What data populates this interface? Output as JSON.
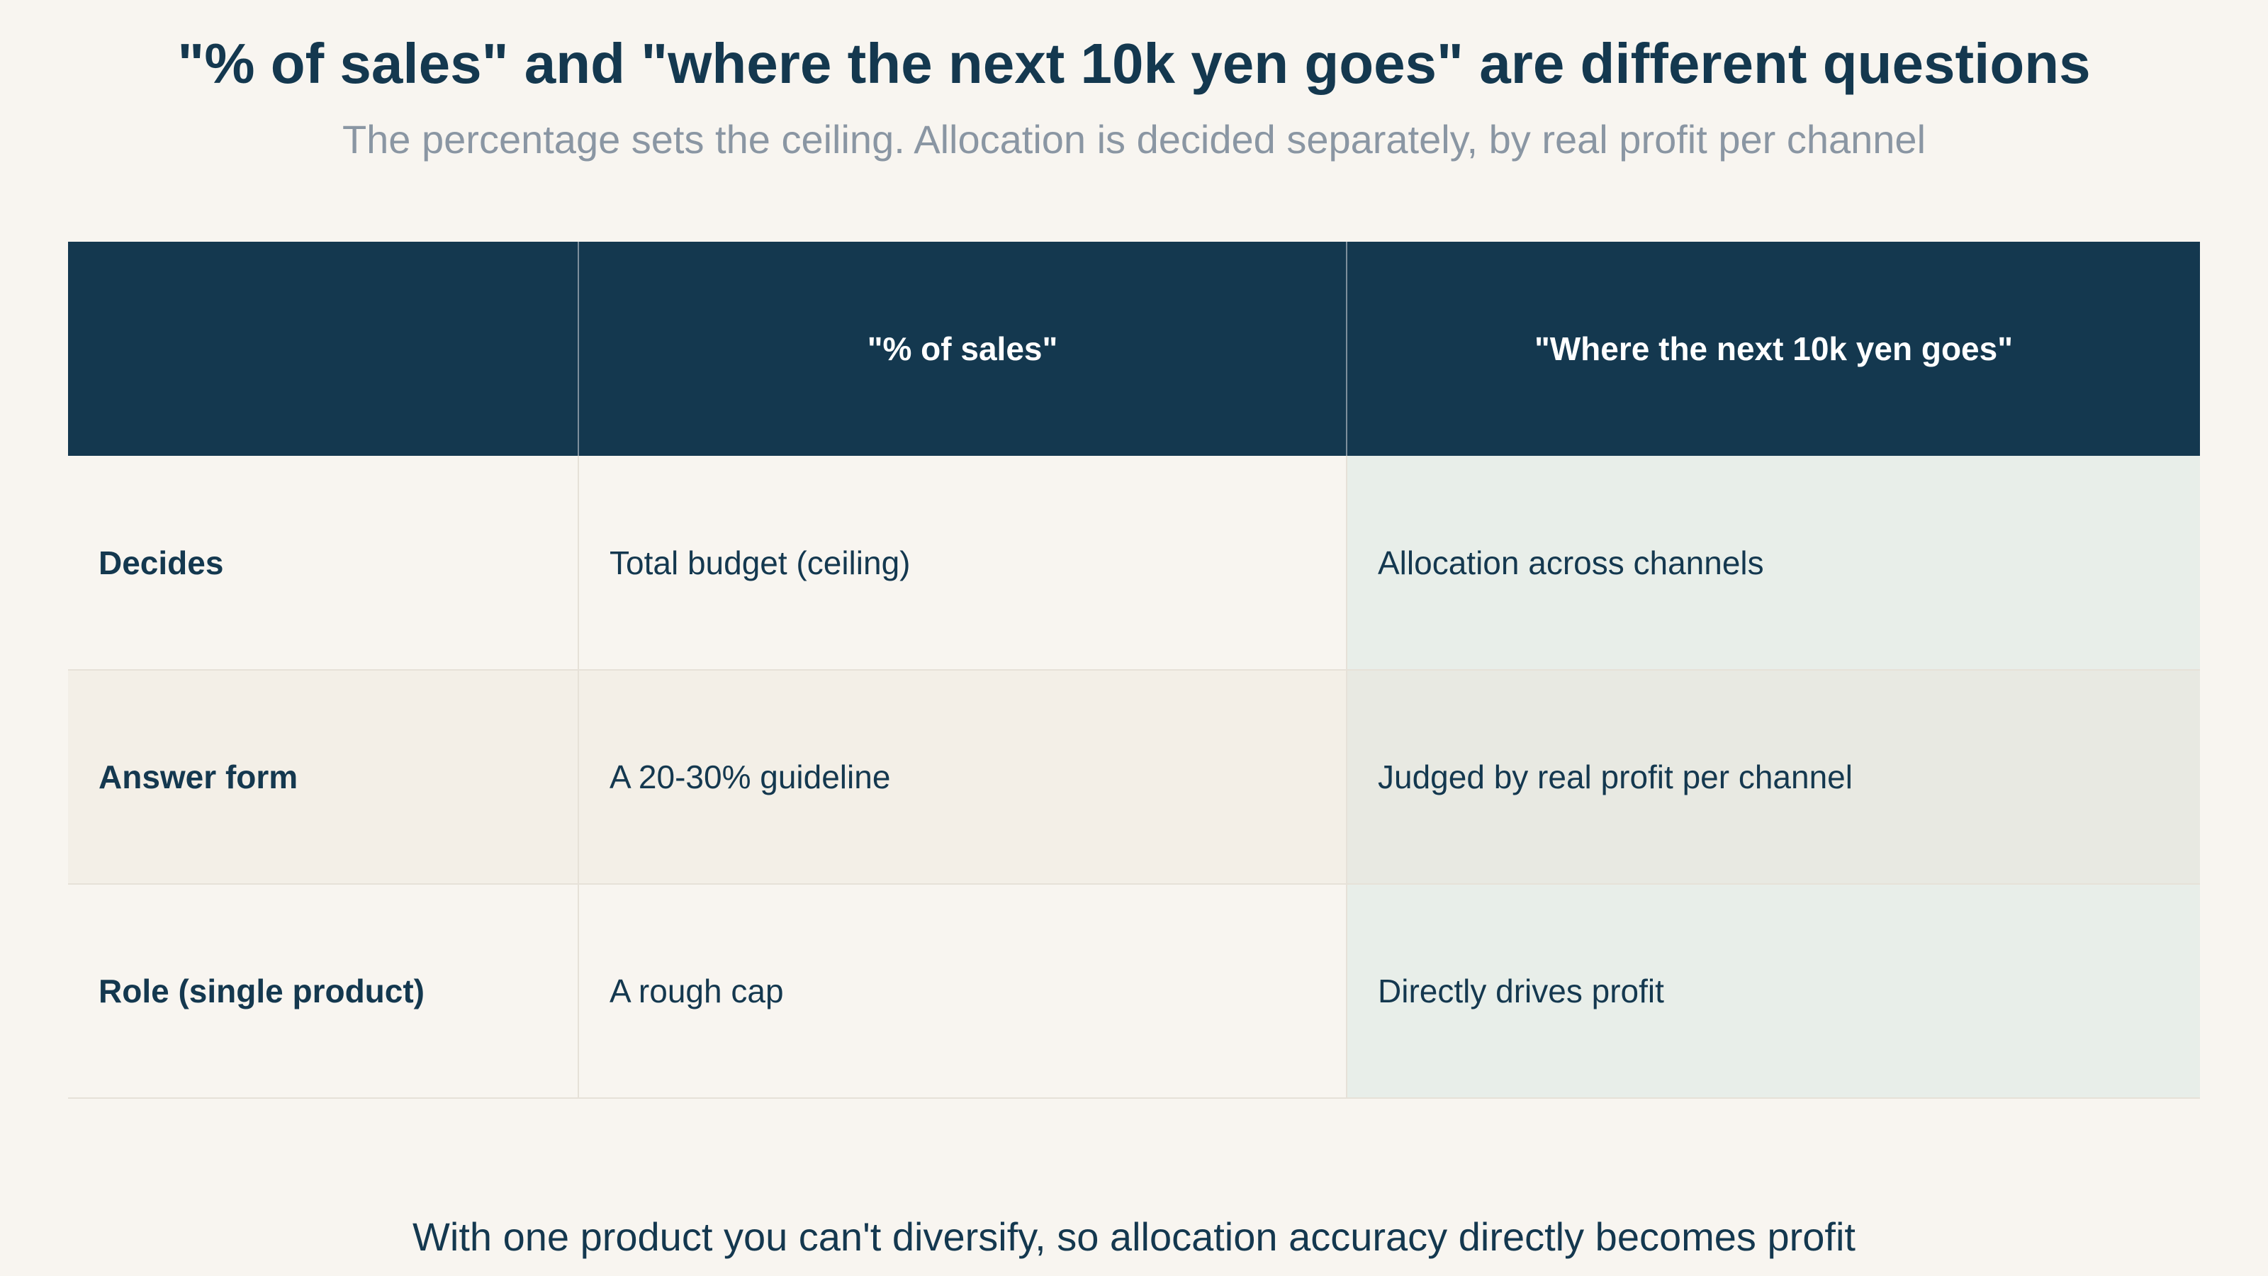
{
  "title": "\"% of sales\" and \"where the next 10k yen goes\" are different questions",
  "subtitle": "The percentage sets the ceiling. Allocation is decided separately, by real profit per channel",
  "table": {
    "header": [
      "\"% of sales\"",
      "\"Where the next 10k yen goes\""
    ],
    "rows": [
      [
        "Decides",
        "Total budget (ceiling)",
        "Allocation across channels"
      ],
      [
        "Answer form",
        "A 20-30% guideline",
        "Judged by real profit per channel"
      ],
      [
        "Role (single product)",
        "A rough cap",
        "Directly drives profit"
      ]
    ]
  },
  "footer": "With one product you can't diversify, so allocation accuracy directly becomes profit"
}
